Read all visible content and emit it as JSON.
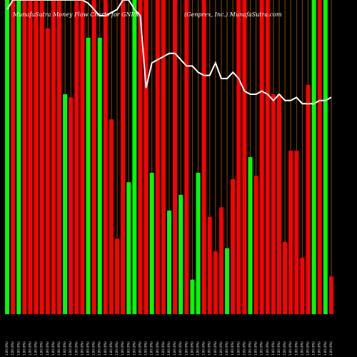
{
  "chart_data": {
    "type": "bar",
    "title": "MunafaSutra Money Flow Charts for GNPX",
    "brand": "(Genprex, Inc.) MunafaSutra.com",
    "colors": {
      "up": "#00ff00",
      "down": "#ff0000",
      "line": "#ffffff",
      "grid": "#8b4a00",
      "background": "#000000"
    },
    "ylim": [
      0,
      100
    ],
    "categories": [
      "1.00 (0%)",
      "1.00 (0%)",
      "1.00 (0%)",
      "1.00 (0%)",
      "1.00 (0%)",
      "1.00 (0%)",
      "1.00 (0%)",
      "1.00 (0%)",
      "1.00 (0%)",
      "1.00 (0%)",
      "1.00 (0%)",
      "1.00 (0%)",
      "1.00 (0%)",
      "1.00 (0%)",
      "1.00 (0%)",
      "1.00 (0%)",
      "1.00 (0%)",
      "1.00 (0%)",
      "1.00 (0%)",
      "1.00 (0%)",
      "1.00 (0%)",
      "1.00 (0%)",
      "1.00 (0%)",
      "1.00 (0%)",
      "1.00 (0%)",
      "1.00 (0%)",
      "1.00 (0%)",
      "1.00 (0%)",
      "1.00 (0%)",
      "1.00 (0%)",
      "1.00 (0%)",
      "1.00 (0%)",
      "1.00 (0%)",
      "1.00 (0%)",
      "1.00 (0%)",
      "1.00 (0%)",
      "1.00 (0%)",
      "1.00 (0%)",
      "1.00 (0%)",
      "1.00 (0%)",
      "1.00 (0%)",
      "1.00 (0%)",
      "1.00 (0%)",
      "1.00 (0%)",
      "1.00 (0%)",
      "1.00 (0%)",
      "1.00 (0%)",
      "1.00 (0%)",
      "1.00 (0%)",
      "1.00 (0%)",
      "1.00 (0%)",
      "1.00 (0%)",
      "1.00 (0%)",
      "1.00 (0%)",
      "1.00 (0%)",
      "1.00 (0%)",
      "1.00 (0%)"
    ],
    "series": [
      {
        "bars": [
          {
            "v": 100,
            "d": "up"
          },
          {
            "v": 100,
            "d": "down"
          },
          {
            "v": 100,
            "d": "up"
          },
          {
            "v": 100,
            "d": "down"
          },
          {
            "v": 100,
            "d": "down"
          },
          {
            "v": 100,
            "d": "down"
          },
          {
            "v": 100,
            "d": "down"
          },
          {
            "v": 91,
            "d": "down"
          },
          {
            "v": 100,
            "d": "down"
          },
          {
            "v": 100,
            "d": "down"
          },
          {
            "v": 70,
            "d": "up"
          },
          {
            "v": 69,
            "d": "down"
          },
          {
            "v": 100,
            "d": "down"
          },
          {
            "v": 100,
            "d": "down"
          },
          {
            "v": 88,
            "d": "up"
          },
          {
            "v": 100,
            "d": "down"
          },
          {
            "v": 88,
            "d": "up"
          },
          {
            "v": 100,
            "d": "down"
          },
          {
            "v": 62,
            "d": "down"
          },
          {
            "v": 24,
            "d": "down"
          },
          {
            "v": 100,
            "d": "down"
          },
          {
            "v": 42,
            "d": "up"
          },
          {
            "v": 100,
            "d": "up"
          },
          {
            "v": 100,
            "d": "down"
          },
          {
            "v": 100,
            "d": "down"
          },
          {
            "v": 45,
            "d": "up"
          },
          {
            "v": 100,
            "d": "down"
          },
          {
            "v": 100,
            "d": "down"
          },
          {
            "v": 33,
            "d": "up"
          },
          {
            "v": 100,
            "d": "down"
          },
          {
            "v": 38,
            "d": "up"
          },
          {
            "v": 100,
            "d": "down"
          },
          {
            "v": 11,
            "d": "up"
          },
          {
            "v": 45,
            "d": "up"
          },
          {
            "v": 100,
            "d": "down"
          },
          {
            "v": 31,
            "d": "down"
          },
          {
            "v": 20,
            "d": "down"
          },
          {
            "v": 34,
            "d": "down"
          },
          {
            "v": 21,
            "d": "up"
          },
          {
            "v": 43,
            "d": "down"
          },
          {
            "v": 100,
            "d": "down"
          },
          {
            "v": 100,
            "d": "down"
          },
          {
            "v": 50,
            "d": "up"
          },
          {
            "v": 44,
            "d": "down"
          },
          {
            "v": 100,
            "d": "down"
          },
          {
            "v": 100,
            "d": "down"
          },
          {
            "v": 70,
            "d": "down"
          },
          {
            "v": 70,
            "d": "down"
          },
          {
            "v": 23,
            "d": "down"
          },
          {
            "v": 52,
            "d": "down"
          },
          {
            "v": 52,
            "d": "down"
          },
          {
            "v": 18,
            "d": "down"
          },
          {
            "v": 73,
            "d": "down"
          },
          {
            "v": 100,
            "d": "up"
          },
          {
            "v": 100,
            "d": "down"
          },
          {
            "v": 100,
            "d": "up"
          },
          {
            "v": 12,
            "d": "down"
          }
        ],
        "line": [
          97,
          100,
          100,
          100,
          100,
          100,
          100,
          100,
          100,
          100,
          100,
          100,
          100,
          100,
          99,
          97,
          95,
          95,
          96,
          97,
          100,
          100,
          97,
          95,
          72,
          80,
          81,
          82,
          83,
          83,
          81,
          79,
          79,
          77,
          76,
          76,
          80,
          75,
          75,
          77,
          75,
          71,
          70,
          70,
          71,
          70,
          68,
          70,
          68,
          68,
          69,
          67,
          67,
          67,
          68,
          68,
          69
        ]
      }
    ]
  }
}
